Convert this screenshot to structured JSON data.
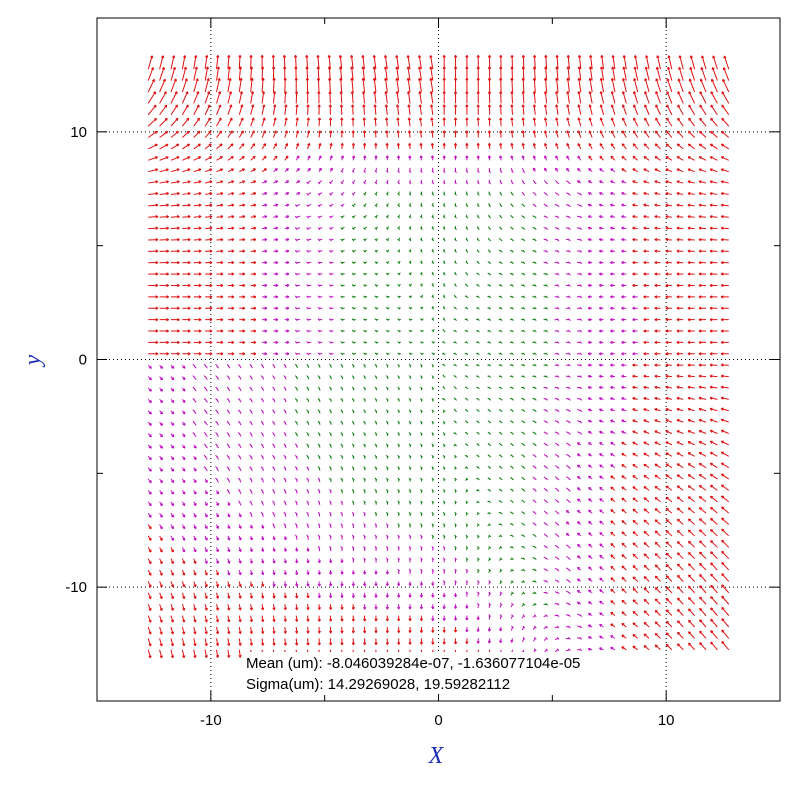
{
  "chart_data": {
    "type": "vector-field",
    "xlabel": "X",
    "ylabel": "y",
    "xlim": [
      -15,
      15
    ],
    "ylim": [
      -15,
      15
    ],
    "x_ticks": [
      -10,
      0,
      10
    ],
    "y_ticks": [
      -10,
      0,
      10
    ],
    "x_tick_labels": [
      "-10",
      "0",
      "10"
    ],
    "y_tick_labels": [
      "-10",
      "0",
      "10"
    ],
    "grid": true,
    "grid_values": [
      -10,
      0,
      10
    ],
    "field_extent": [
      -12.75,
      12.75
    ],
    "grid_step": 0.5,
    "annotations": [
      "Mean (um): -8.046039284e-07, -1.636077104e-05",
      "Sigma(um): 14.29269028, 19.59282112"
    ],
    "colors": {
      "axis_title": "#1c2bb8",
      "arrow_large": "#e01010",
      "arrow_medium": "#c010c0",
      "arrow_small": "#108010",
      "grid": "#000000",
      "frame": "#000000"
    }
  }
}
